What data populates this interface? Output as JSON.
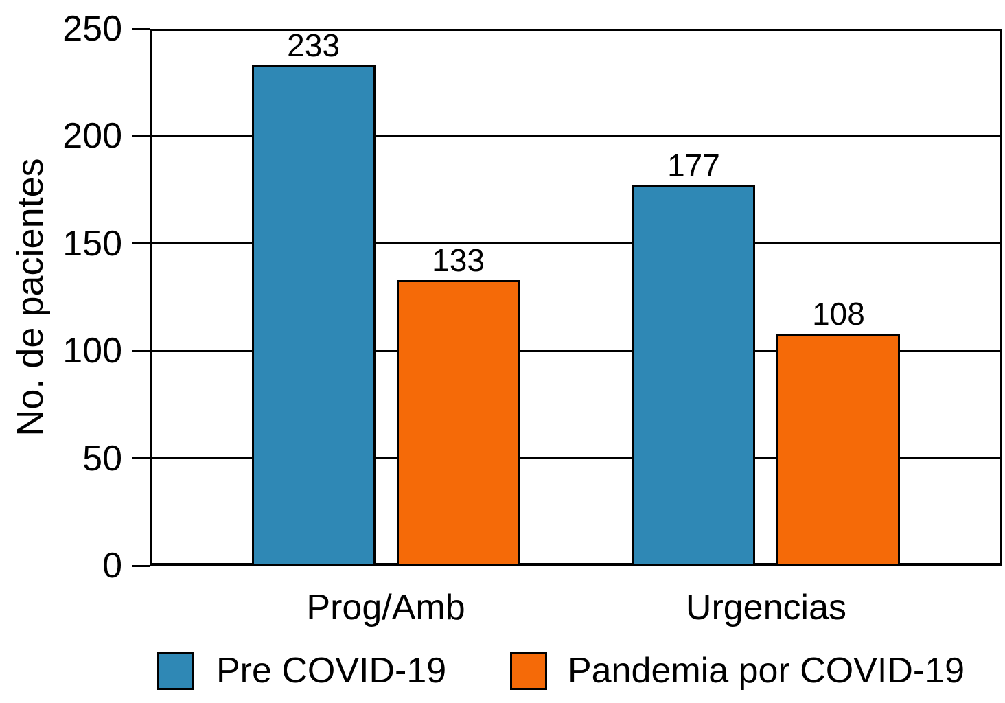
{
  "chart_data": {
    "type": "bar",
    "categories": [
      "Prog/Amb",
      "Urgencias"
    ],
    "series": [
      {
        "name": "Pre COVID-19",
        "color": "#2F88B5",
        "values": [
          233,
          177
        ]
      },
      {
        "name": "Pandemia por COVID-19",
        "color": "#F56A08",
        "values": [
          133,
          108
        ]
      }
    ],
    "title": "",
    "xlabel": "",
    "ylabel": "No. de pacientes",
    "ylim": [
      0,
      250
    ],
    "yticks": [
      0,
      50,
      100,
      150,
      200,
      250
    ],
    "grid": "horizontal",
    "legend_position": "bottom",
    "bar_edge_color": "#000000",
    "value_labels_shown": true
  },
  "colors": {
    "series_pre_covid": "#2F88B5",
    "series_pandemia": "#F56A08",
    "axis": "#000000",
    "background": "#FFFFFF"
  }
}
